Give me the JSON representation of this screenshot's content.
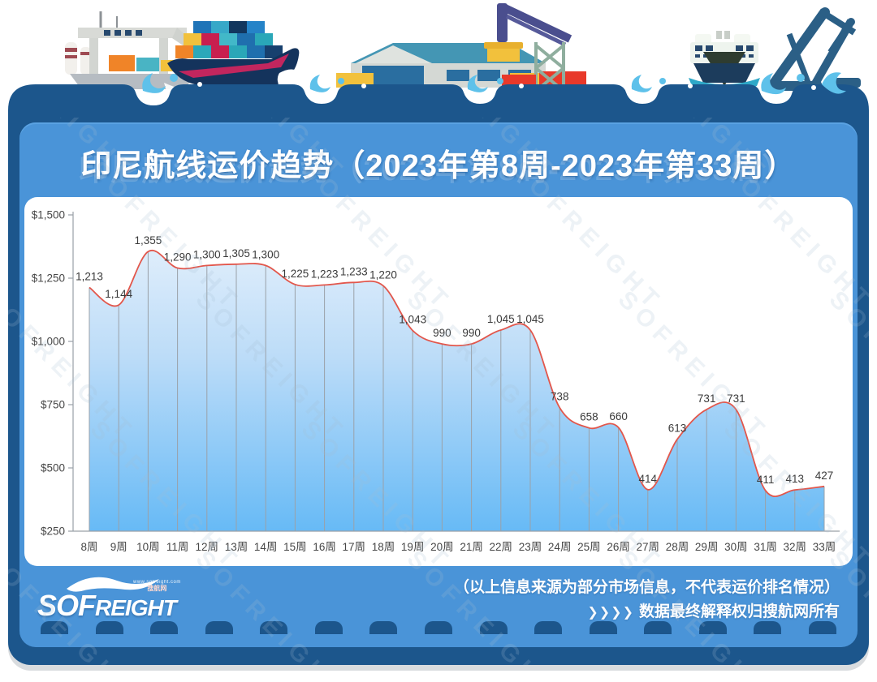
{
  "title": "印尼航线运价趋势（2023年第8周-2023年第33周）",
  "watermark": {
    "text": "SOFREIGHT"
  },
  "colors": {
    "card_navy": "#1c568c",
    "card_blue": "#4a94d8",
    "line_red": "#e2574c",
    "area_top": "#eaf3fc",
    "area_bottom": "#67baf6",
    "dropline_gray": "#9aa1a8",
    "label_gray": "#3a3a3a"
  },
  "chart_data": {
    "type": "area",
    "title": "印尼航线运价趋势（2023年第8周-2023年第33周）",
    "xlabel": "",
    "ylabel": "",
    "ylim": [
      250,
      1500
    ],
    "grid": "vertical-droplines-only",
    "legend": "none",
    "categories": [
      "8周",
      "9周",
      "10周",
      "11周",
      "12周",
      "13周",
      "14周",
      "15周",
      "16周",
      "17周",
      "18周",
      "19周",
      "20周",
      "21周",
      "22周",
      "23周",
      "24周",
      "25周",
      "26周",
      "27周",
      "28周",
      "29周",
      "30周",
      "31周",
      "32周",
      "33周"
    ],
    "values": [
      1213,
      1144,
      1355,
      1290,
      1300,
      1305,
      1300,
      1225,
      1223,
      1233,
      1220,
      1043,
      990,
      990,
      1045,
      1045,
      738,
      658,
      660,
      414,
      613,
      731,
      731,
      411,
      413,
      427
    ],
    "data_labels": [
      "1,213",
      "1,144",
      "1,355",
      "1,290",
      "1,300",
      "1,305",
      "1,300",
      "1,225",
      "1,223",
      "1,233",
      "1,220",
      "1,043",
      "990",
      "990",
      "1,045",
      "1,045",
      "738",
      "658",
      "660",
      "414",
      "613",
      "731",
      "731",
      "411",
      "413",
      "427"
    ],
    "y_ticks": [
      {
        "value": 250,
        "label": "$250"
      },
      {
        "value": 500,
        "label": "$500"
      },
      {
        "value": 750,
        "label": "$750"
      },
      {
        "value": 1000,
        "label": "$1,000"
      },
      {
        "value": 1250,
        "label": "$1,250"
      },
      {
        "value": 1500,
        "label": "$1,500"
      }
    ],
    "line_color": "#e2574c",
    "area_gradient": [
      "#eaf3fc",
      "#bcdcf8",
      "#67baf6"
    ],
    "dropline_color": "#9aa1a8",
    "axis_color": "#9aa1a8",
    "tick_text_color": "#474747",
    "label_text_color": "#3a3a3a"
  },
  "footer": {
    "disclaimer_line1": "（以上信息来源为部分市场信息，不代表运价排名情况）",
    "disclaimer_line2": "数据最终解释权归搜航网所有",
    "chevrons": "❯❯❯❯",
    "logo": {
      "text_sof": "SOF",
      "text_reight": "REIGHT",
      "sub_url": "www.sofreight.com",
      "sub_cn": "搜航网"
    }
  }
}
